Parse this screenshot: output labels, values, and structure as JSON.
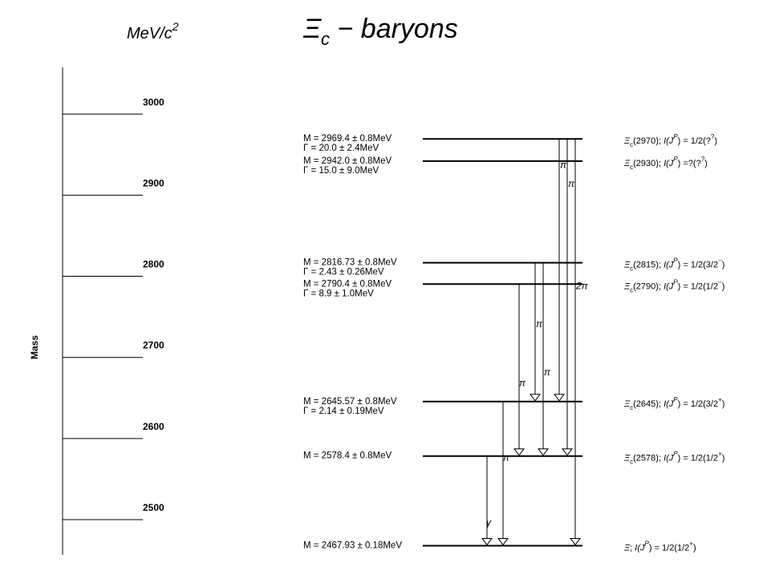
{
  "title": {
    "symbol": "Ξ",
    "subscript": "c",
    "rest": " − baryons"
  },
  "unit": {
    "text": "MeV/c",
    "exponent": "2"
  },
  "axis": {
    "label": "Mass",
    "ticks": [
      2500,
      2600,
      2700,
      2800,
      2900,
      3000
    ]
  },
  "levels": [
    {
      "id": "L2970",
      "mass": 2969.4,
      "mass_text": "M = 2969.4 ± 0.8MeV",
      "width_text": "Γ = 20.0 ± 2.4MeV",
      "state": {
        "name": "Ξc(2970)",
        "base": "Ξ",
        "sub": "c",
        "paren": "(2970); ",
        "ijp": "I(J",
        "sup": "P",
        "eq": ") = 1/2(?",
        "sup2": "?",
        "close": ")"
      }
    },
    {
      "id": "L2930",
      "mass": 2942.0,
      "mass_text": "M = 2942.0 ± 0.8MeV",
      "width_text": "Γ = 15.0 ± 9.0MeV",
      "state": {
        "name": "Ξc(2930)",
        "base": "Ξ",
        "sub": "c",
        "paren": "(2930); ",
        "ijp": "I(J",
        "sup": "P",
        "eq": ") =?(?",
        "sup2": "?",
        "close": ")"
      }
    },
    {
      "id": "L2815",
      "mass": 2816.73,
      "mass_text": "M = 2816.73 ± 0.8MeV",
      "width_text": "Γ = 2.43 ± 0.26MeV",
      "state": {
        "name": "Ξc(2815)",
        "base": "Ξ",
        "sub": "c",
        "paren": "(2815); ",
        "ijp": "I(J",
        "sup": "P",
        "eq": ") = 1/2(3/2",
        "sup2": "−",
        "close": ")"
      }
    },
    {
      "id": "L2790",
      "mass": 2790.4,
      "mass_text": "M = 2790.4 ± 0.8MeV",
      "width_text": "Γ = 8.9 ± 1.0MeV",
      "state": {
        "name": "Ξc(2790)",
        "base": "Ξ",
        "sub": "c",
        "paren": "(2790); ",
        "ijp": "I(J",
        "sup": "P",
        "eq": ") = 1/2(1/2",
        "sup2": "−",
        "close": ")"
      }
    },
    {
      "id": "L2645",
      "mass": 2645.57,
      "mass_text": "M = 2645.57 ± 0.8MeV",
      "width_text": "Γ = 2.14 ± 0.19MeV",
      "state": {
        "name": "Ξc(2645)",
        "base": "Ξ",
        "sub": "c",
        "paren": "(2645); ",
        "ijp": "I(J",
        "sup": "P",
        "eq": ") = 1/2(3/2",
        "sup2": "+",
        "close": ")"
      }
    },
    {
      "id": "L2578",
      "mass": 2578.4,
      "mass_text": "M = 2578.4 ± 0.8MeV",
      "width_text": "",
      "state": {
        "name": "Ξc(2578)",
        "base": "Ξ",
        "sub": "c",
        "paren": "(2578); ",
        "ijp": "I(J",
        "sup": "P",
        "eq": ") = 1/2(1/2",
        "sup2": "+",
        "close": ")"
      }
    },
    {
      "id": "L2468",
      "mass": 2467.93,
      "mass_text": "M = 2467.93 ± 0.18MeV",
      "width_text": "",
      "state": {
        "name": "Ξ",
        "base": "Ξ",
        "sub": "",
        "paren": "; ",
        "ijp": "I(J",
        "sup": "P",
        "eq": ") = 1/2(1/2",
        "sup2": "+",
        "close": ")"
      }
    }
  ],
  "transitions": [
    {
      "from": "L2578",
      "to": "L2468",
      "label": "γ"
    },
    {
      "from": "L2645",
      "to": "L2468",
      "label": "π"
    },
    {
      "from": "L2790",
      "to": "L2578",
      "label": "π"
    },
    {
      "from": "L2815",
      "to": "L2645",
      "label": "π"
    },
    {
      "from": "L2815",
      "to": "L2578",
      "label": "π"
    },
    {
      "from": "L2970",
      "to": "L2645",
      "label": "π"
    },
    {
      "from": "L2970",
      "to": "L2578",
      "label": "π"
    },
    {
      "from": "L2970",
      "to": "L2468",
      "label": "2π"
    }
  ]
}
